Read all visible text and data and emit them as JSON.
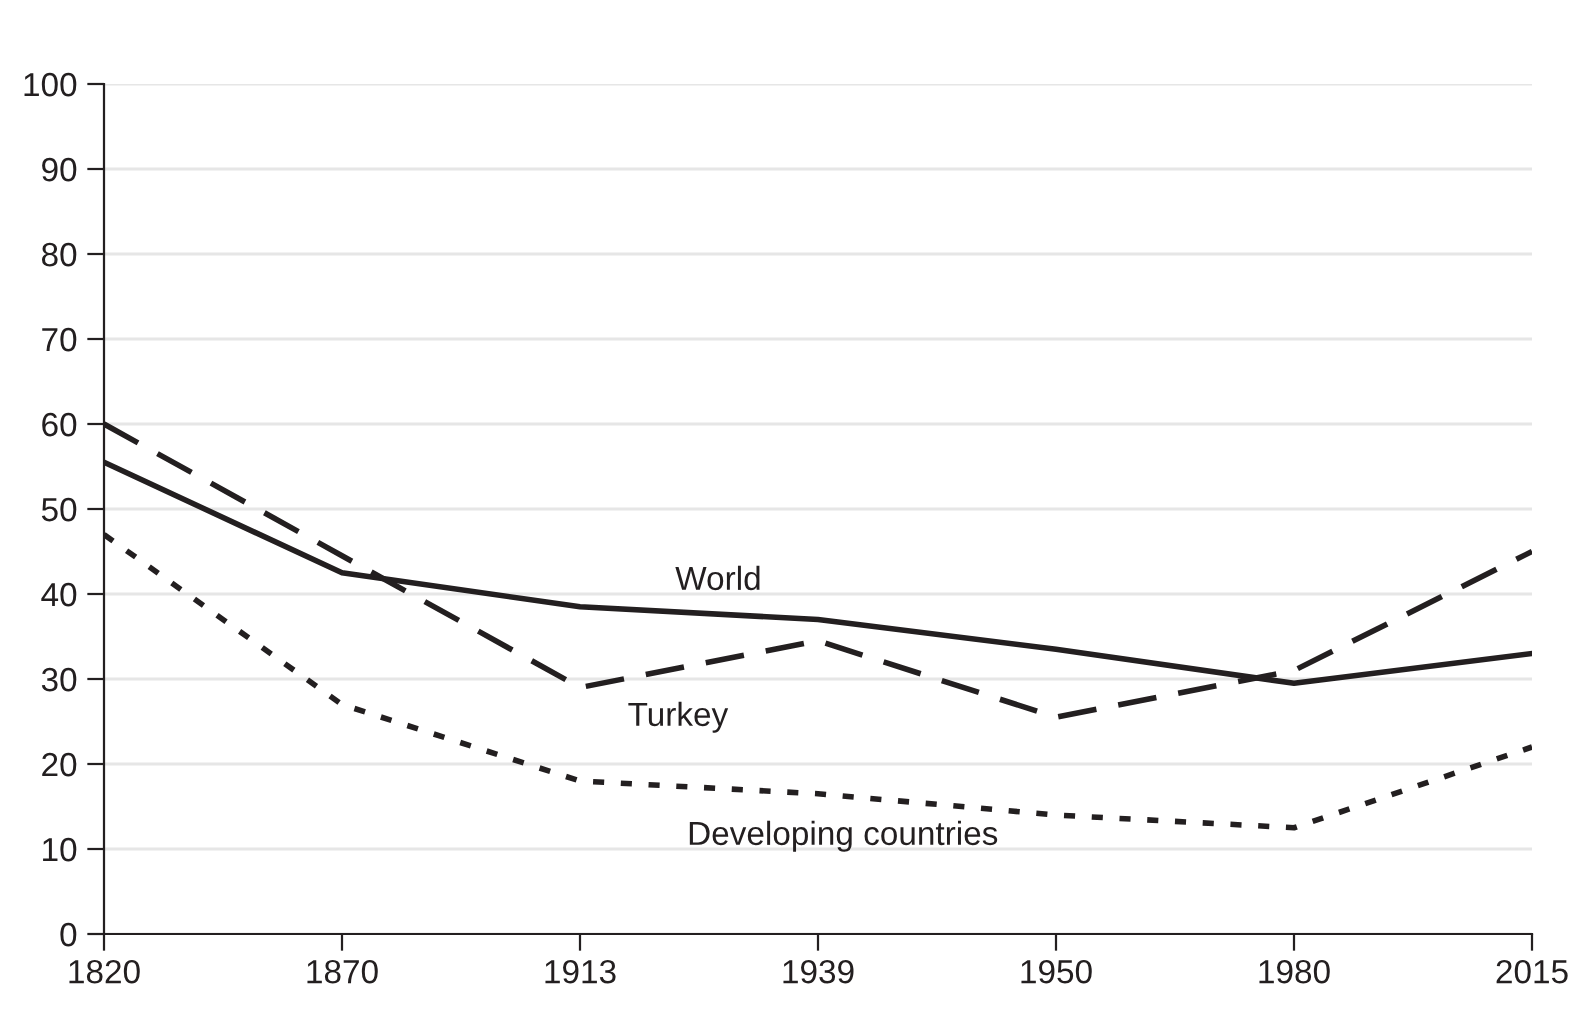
{
  "chart_data": {
    "type": "line",
    "categories": [
      "1820",
      "1870",
      "1913",
      "1939",
      "1950",
      "1980",
      "2015"
    ],
    "series": [
      {
        "name": "World",
        "color": "#231f20",
        "line_style": "solid",
        "values": [
          55.5,
          42.5,
          38.5,
          37,
          33.5,
          29.5,
          33
        ]
      },
      {
        "name": "Turkey",
        "color": "#231f20",
        "line_style": "dashed",
        "values": [
          60,
          44.5,
          29,
          34.5,
          25.5,
          31,
          45
        ]
      },
      {
        "name": "Developing countries",
        "color": "#231f20",
        "line_style": "dotted",
        "values": [
          47,
          27,
          18,
          16.5,
          14,
          12.5,
          22
        ]
      }
    ],
    "ylim": [
      0,
      100
    ],
    "yticks": [
      0,
      10,
      20,
      30,
      40,
      50,
      60,
      70,
      80,
      90,
      100
    ],
    "grid": "y",
    "legend": false,
    "marker": "none"
  }
}
